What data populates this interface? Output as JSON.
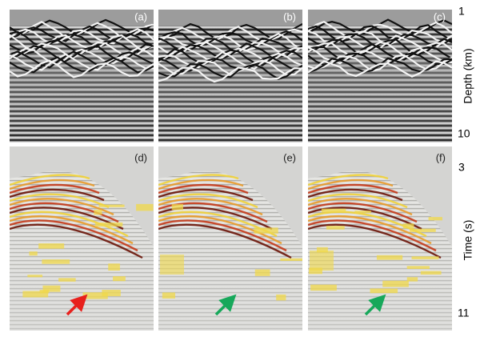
{
  "panels": {
    "top": [
      "(a)",
      "(b)",
      "(c)"
    ],
    "bottom": [
      "(d)",
      "(e)",
      "(f)"
    ]
  },
  "axes": {
    "top": {
      "start": "1",
      "end": "10",
      "label": "Depth (km)"
    },
    "bottom": {
      "start": "3",
      "end": "11",
      "label": "Time (s)"
    }
  }
}
